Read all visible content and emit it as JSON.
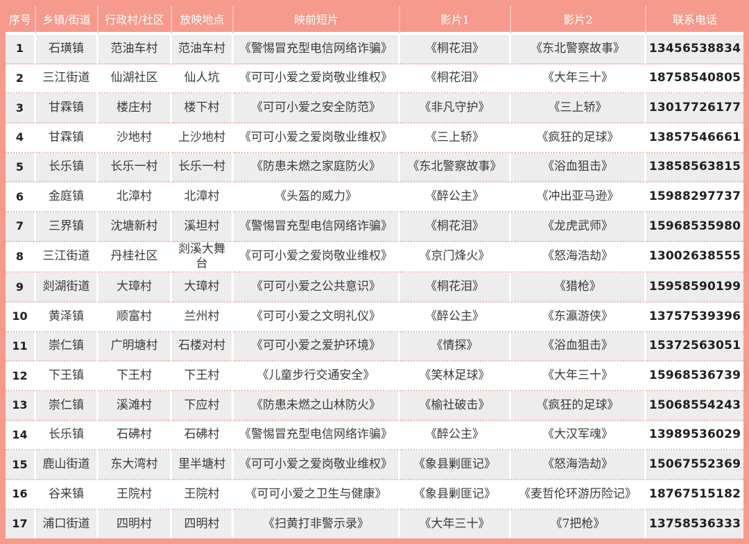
{
  "colors": {
    "frame_and_header": "#F59A8C",
    "odd_row": "#EDEDED",
    "even_row": "#FFFFFF",
    "row_separator": "#EFBCB1",
    "body_text": "#3A3A3A",
    "header_text": "#FFFFFF"
  },
  "table": {
    "headers": [
      "序号",
      "乡镇/街道",
      "行政村/社区",
      "放映地点",
      "映前短片",
      "影片1",
      "影片2",
      "联系电话"
    ],
    "rows": [
      [
        "1",
        "石璜镇",
        "范油车村",
        "范油车村",
        "《警惕冒充型电信网络诈骗》",
        "《桐花泪》",
        "《东北警察故事》",
        "13456538834"
      ],
      [
        "2",
        "三江街道",
        "仙湖社区",
        "仙人坑",
        "《可可小爱之爱岗敬业维权》",
        "《桐花泪》",
        "《大年三十》",
        "18758540805"
      ],
      [
        "3",
        "甘霖镇",
        "楼庄村",
        "楼下村",
        "《可可小爱之安全防范》",
        "《非凡守护》",
        "《三上轿》",
        "13017726177"
      ],
      [
        "4",
        "甘霖镇",
        "沙地村",
        "上沙地村",
        "《可可小爱之爱岗敬业维权》",
        "《三上轿》",
        "《疯狂的足球》",
        "13857546661"
      ],
      [
        "5",
        "长乐镇",
        "长乐一村",
        "长乐一村",
        "《防患未燃之家庭防火》",
        "《东北警察故事》",
        "《浴血狙击》",
        "13858563815"
      ],
      [
        "6",
        "金庭镇",
        "北漳村",
        "北漳村",
        "《头盔的威力》",
        "《醉公主》",
        "《冲出亚马逊》",
        "15988297737"
      ],
      [
        "7",
        "三界镇",
        "沈塘新村",
        "溪坦村",
        "《警惕冒充型电信网络诈骗》",
        "《桐花泪》",
        "《龙虎武师》",
        "15968535980"
      ],
      [
        "8",
        "三江街道",
        "丹桂社区",
        "剡溪大舞台",
        "《可可小爱之爱岗敬业维权》",
        "《京门烽火》",
        "《怒海浩劫》",
        "13002638555"
      ],
      [
        "9",
        "剡湖街道",
        "大璋村",
        "大璋村",
        "《可可小爱之公共意识》",
        "《桐花泪》",
        "《猎枪》",
        "15958590199"
      ],
      [
        "10",
        "黄泽镇",
        "顺富村",
        "兰州村",
        "《可可小爱之文明礼仪》",
        "《醉公主》",
        "《东瀛游侠》",
        "13757539396"
      ],
      [
        "11",
        "崇仁镇",
        "广明塘村",
        "石楼对村",
        "《可可小爱之爱护环境》",
        "《情探》",
        "《浴血狙击》",
        "15372563051"
      ],
      [
        "12",
        "下王镇",
        "下王村",
        "下王村",
        "《儿童步行交通安全》",
        "《笑林足球》",
        "《大年三十》",
        "15968536739"
      ],
      [
        "13",
        "崇仁镇",
        "溪滩村",
        "下应村",
        "《防患未燃之山林防火》",
        "《榆社破击》",
        "《疯狂的足球》",
        "15068554243"
      ],
      [
        "14",
        "长乐镇",
        "石砩村",
        "石砩村",
        "《警惕冒充型电信网络诈骗》",
        "《醉公主》",
        "《大汉军魂》",
        "13989536029"
      ],
      [
        "15",
        "鹿山街道",
        "东大湾村",
        "里半塘村",
        "《可可小爱之爱岗敬业维权》",
        "《象县剿匪记》",
        "《怒海浩劫》",
        "15067552369"
      ],
      [
        "16",
        "谷来镇",
        "王院村",
        "王院村",
        "《可可小爱之卫生与健康》",
        "《象县剿匪记》",
        "《麦哲伦环游历险记》",
        "18767515182"
      ],
      [
        "17",
        "浦口街道",
        "四明村",
        "四明村",
        "《扫黄打非警示录》",
        "《大年三十》",
        "《7把枪》",
        "13758536333"
      ]
    ]
  }
}
